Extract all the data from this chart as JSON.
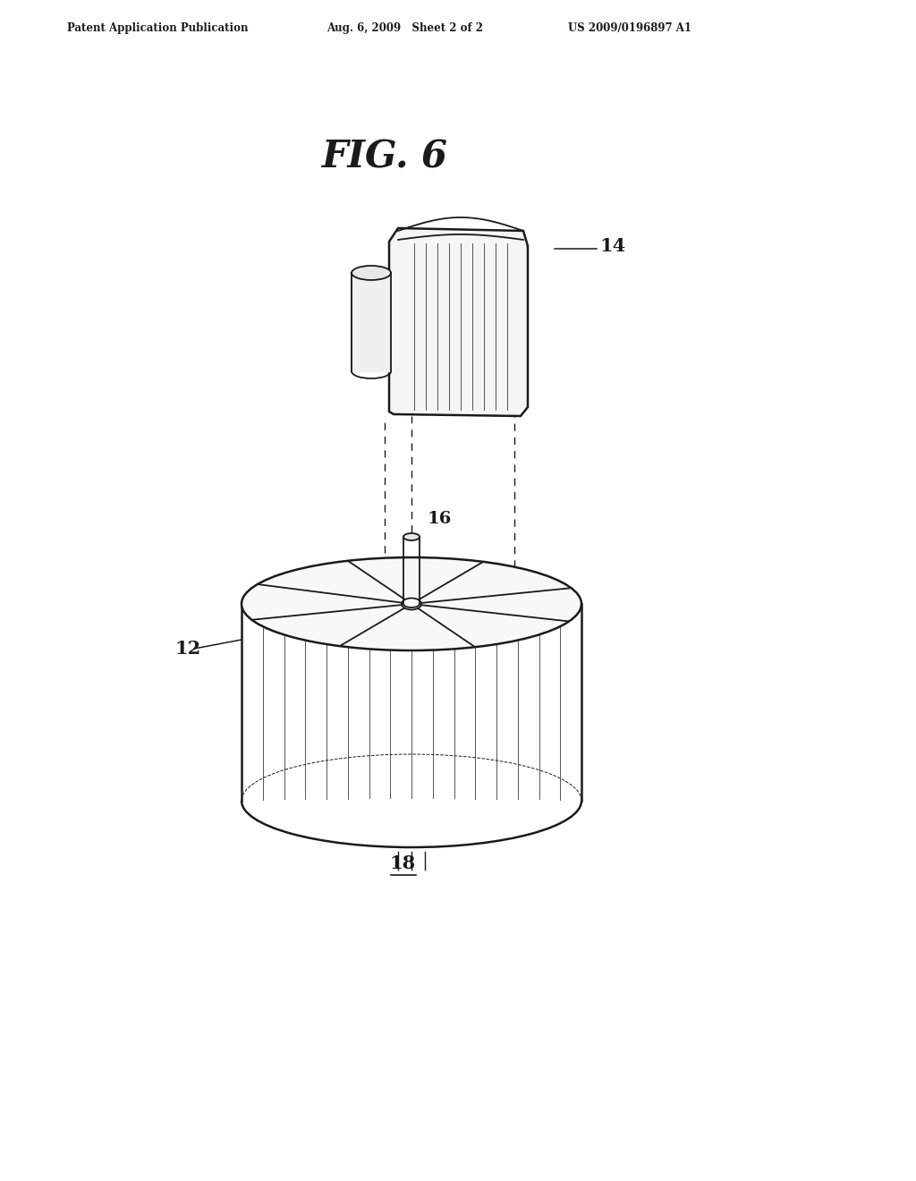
{
  "header_left": "Patent Application Publication",
  "header_mid": "Aug. 6, 2009   Sheet 2 of 2",
  "header_right": "US 2009/0196897 A1",
  "figure_label": "FIG. 6",
  "label_14": "14",
  "label_12": "12",
  "label_16": "16",
  "label_18": "18",
  "bg_color": "#ffffff",
  "line_color": "#1a1a1a",
  "line_width": 1.3,
  "lw_thick": 1.8
}
